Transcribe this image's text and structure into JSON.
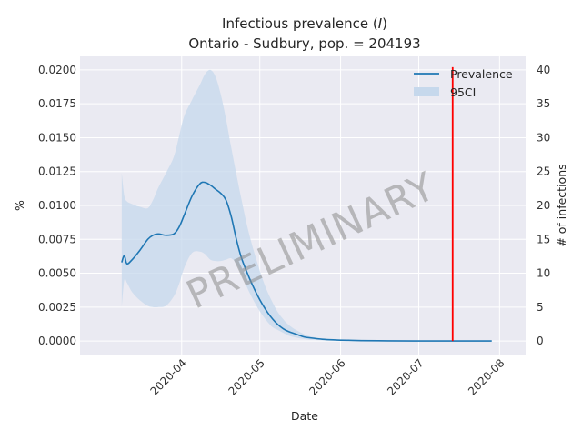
{
  "chart_data": {
    "type": "line",
    "title_line1_prefix": "Infectious prevalence (",
    "title_symbol": "I",
    "title_line1_suffix": ")",
    "title_line2": "Ontario - Sudbury, pop. = 204193",
    "xlabel": "Date",
    "ylabel_left": "%",
    "ylabel_right": "# of infections",
    "watermark": "PRELIMINARY",
    "legend": {
      "position": "top-right",
      "entries": [
        "Prevalence",
        "95CI"
      ]
    },
    "grid": true,
    "x_ticks": [
      "2020-04",
      "2020-05",
      "2020-06",
      "2020-07",
      "2020-08"
    ],
    "x_tick_days": [
      31,
      61,
      92,
      122,
      153
    ],
    "xlim_days": [
      -8,
      163
    ],
    "ylim_left": [
      -0.001,
      0.021
    ],
    "y_ticks_left": [
      "0.0000",
      "0.0025",
      "0.0050",
      "0.0075",
      "0.0100",
      "0.0125",
      "0.0150",
      "0.0175",
      "0.0200"
    ],
    "y_ticks_right": [
      "0",
      "5",
      "10",
      "15",
      "20",
      "25",
      "30",
      "35",
      "40"
    ],
    "colors": {
      "prevalence": "#1f77b4",
      "ci": "#c6d8ec",
      "marker": "#ff0000",
      "plot_bg": "#eaeaf2",
      "grid": "#ffffff"
    },
    "marker_line": {
      "x_day": 135,
      "y_top": 0.0202
    },
    "series": [
      {
        "name": "Prevalence",
        "x_day": [
          8,
          9,
          10,
          12,
          15,
          18,
          20,
          22,
          25,
          28,
          30,
          32,
          35,
          38,
          40,
          42,
          44,
          46,
          48,
          50,
          52,
          54,
          56,
          58,
          60,
          62,
          64,
          66,
          68,
          70,
          72,
          75,
          78,
          80,
          85,
          90,
          95,
          100,
          110,
          120,
          130,
          140,
          150
        ],
        "values": [
          0.0058,
          0.0063,
          0.0057,
          0.006,
          0.0067,
          0.0075,
          0.0078,
          0.0079,
          0.0078,
          0.0079,
          0.0084,
          0.0093,
          0.0107,
          0.0116,
          0.0117,
          0.0115,
          0.0112,
          0.0109,
          0.0104,
          0.0092,
          0.0075,
          0.0061,
          0.0051,
          0.0042,
          0.0034,
          0.0027,
          0.0021,
          0.0016,
          0.0012,
          0.0009,
          0.0007,
          0.0005,
          0.0003,
          0.00024,
          0.00013,
          8e-05,
          5e-05,
          3e-05,
          1e-05,
          0.0,
          0.0,
          0.0,
          0.0
        ]
      },
      {
        "name": "95CI",
        "x_day": [
          8,
          9,
          10,
          12,
          15,
          18,
          20,
          22,
          25,
          28,
          30,
          32,
          35,
          38,
          40,
          42,
          44,
          46,
          48,
          50,
          52,
          54,
          56,
          58,
          60,
          62,
          64,
          66,
          68,
          70,
          72,
          75,
          78,
          80,
          85,
          90,
          95,
          100,
          110,
          120,
          130,
          140,
          150
        ],
        "lower": [
          0.0025,
          0.0045,
          0.0043,
          0.0036,
          0.003,
          0.0026,
          0.0025,
          0.0025,
          0.0026,
          0.0033,
          0.0042,
          0.0054,
          0.0065,
          0.0066,
          0.0064,
          0.006,
          0.0059,
          0.0059,
          0.006,
          0.0061,
          0.0057,
          0.0049,
          0.004,
          0.0032,
          0.0025,
          0.0019,
          0.0014,
          0.001,
          0.0008,
          0.0006,
          0.0004,
          0.00025,
          0.00015,
          0.0001,
          5e-05,
          2e-05,
          1e-05,
          0.0,
          0.0,
          0.0,
          0.0,
          0.0,
          0.0
        ],
        "upper": [
          0.0124,
          0.0107,
          0.0103,
          0.0101,
          0.0099,
          0.0098,
          0.0104,
          0.0113,
          0.0124,
          0.0136,
          0.0151,
          0.0166,
          0.0178,
          0.0189,
          0.0197,
          0.02,
          0.0195,
          0.0182,
          0.0164,
          0.0143,
          0.0123,
          0.0104,
          0.0086,
          0.0071,
          0.0058,
          0.0046,
          0.0036,
          0.0028,
          0.0021,
          0.0016,
          0.0012,
          0.0008,
          0.0005,
          0.00035,
          0.00018,
          0.0001,
          6e-05,
          4e-05,
          2e-05,
          1e-05,
          0.0,
          0.0,
          0.0
        ]
      }
    ]
  }
}
